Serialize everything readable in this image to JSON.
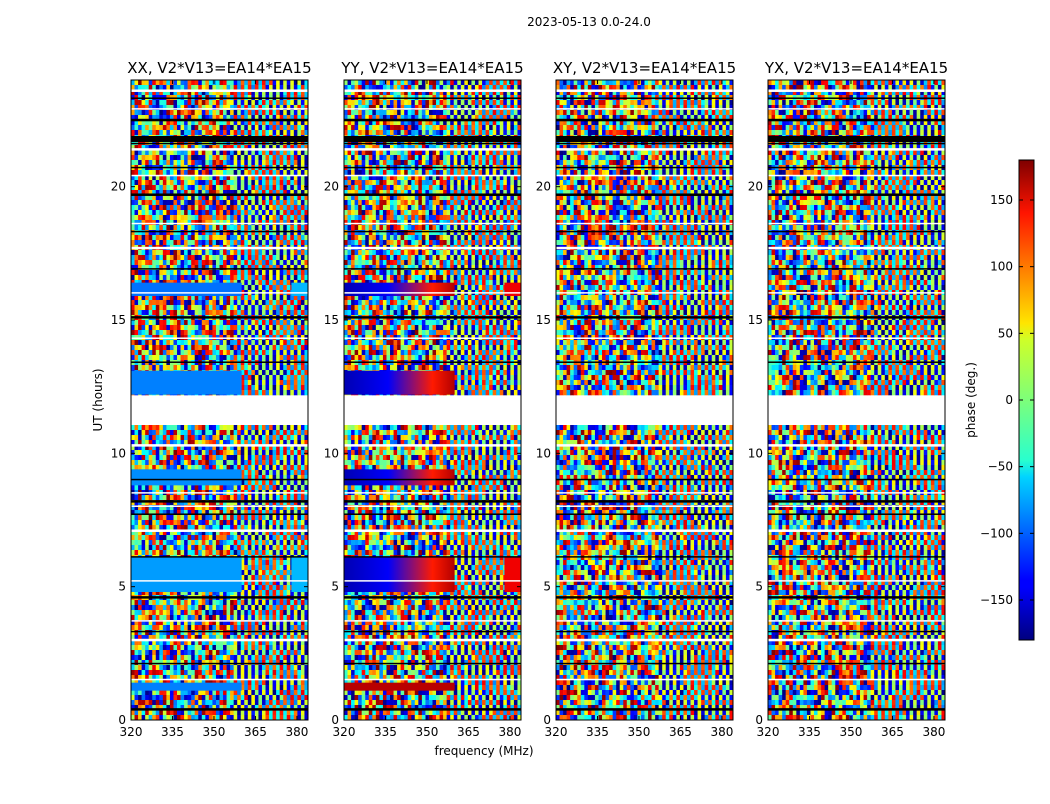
{
  "suptitle": "2023-05-13 0.0-24.0",
  "xlabel": "frequency (MHz)",
  "ylabel": "UT (hours)",
  "colorbar": {
    "label": "phase (deg.)",
    "ticks": [
      -150,
      -100,
      -50,
      0,
      50,
      100,
      150
    ],
    "range": [
      -180,
      180
    ],
    "colormap": "jet"
  },
  "chart_data": [
    {
      "type": "heatmap",
      "title": "XX, V2*V13=EA14*EA15",
      "xlabel": "frequency (MHz)",
      "ylabel": "UT (hours)",
      "xlim": [
        320,
        384
      ],
      "ylim": [
        0,
        24
      ],
      "xticks": [
        320,
        335,
        350,
        365,
        380
      ],
      "yticks": [
        0,
        5,
        10,
        15,
        20
      ],
      "value": "phase (deg.)",
      "coherent_regions": [
        {
          "t": [
            1.1,
            1.4
          ],
          "f": [
            320,
            360
          ],
          "phase": -90
        },
        {
          "t": [
            4.8,
            6.1
          ],
          "f": [
            320,
            360
          ],
          "phase": -80
        },
        {
          "t": [
            8.8,
            9.4
          ],
          "f": [
            320,
            360
          ],
          "phase": -85
        },
        {
          "t": [
            12.2,
            13.1
          ],
          "f": [
            320,
            360
          ],
          "phase": -90
        },
        {
          "t": [
            15.9,
            16.4
          ],
          "f": [
            320,
            360
          ],
          "phase": -95
        },
        {
          "t": [
            4.8,
            6.1
          ],
          "f": [
            378,
            384
          ],
          "phase": -70
        },
        {
          "t": [
            15.9,
            16.4
          ],
          "f": [
            378,
            384
          ],
          "phase": -70
        }
      ]
    },
    {
      "type": "heatmap",
      "title": "YY, V2*V13=EA14*EA15",
      "xlabel": "frequency (MHz)",
      "ylabel": "UT (hours)",
      "xlim": [
        320,
        384
      ],
      "ylim": [
        0,
        24
      ],
      "xticks": [
        320,
        335,
        350,
        365,
        380
      ],
      "yticks": [
        0,
        5,
        10,
        15,
        20
      ],
      "value": "phase (deg.)",
      "coherent_regions": [
        {
          "t": [
            1.1,
            1.4
          ],
          "f": [
            320,
            360
          ],
          "phase": 160
        },
        {
          "t": [
            4.8,
            6.1
          ],
          "f": [
            320,
            360
          ],
          "phase": "-160 to 160"
        },
        {
          "t": [
            8.8,
            9.4
          ],
          "f": [
            320,
            360
          ],
          "phase": "-160 to 160"
        },
        {
          "t": [
            12.2,
            13.1
          ],
          "f": [
            320,
            360
          ],
          "phase": "-160 to 160"
        },
        {
          "t": [
            15.9,
            16.4
          ],
          "f": [
            320,
            360
          ],
          "phase": "-160 to 160"
        },
        {
          "t": [
            4.8,
            6.1
          ],
          "f": [
            378,
            384
          ],
          "phase": 140
        },
        {
          "t": [
            15.9,
            16.4
          ],
          "f": [
            378,
            384
          ],
          "phase": 140
        }
      ]
    },
    {
      "type": "heatmap",
      "title": "XY, V2*V13=EA14*EA15",
      "xlabel": "frequency (MHz)",
      "ylabel": "UT (hours)",
      "xlim": [
        320,
        384
      ],
      "ylim": [
        0,
        24
      ],
      "xticks": [
        320,
        335,
        350,
        365,
        380
      ],
      "yticks": [
        0,
        5,
        10,
        15,
        20
      ],
      "value": "phase (deg.)",
      "coherent_regions": []
    },
    {
      "type": "heatmap",
      "title": "YX, V2*V13=EA14*EA15",
      "xlabel": "frequency (MHz)",
      "ylabel": "UT (hours)",
      "xlim": [
        320,
        384
      ],
      "ylim": [
        0,
        24
      ],
      "xticks": [
        320,
        335,
        350,
        365,
        380
      ],
      "yticks": [
        0,
        5,
        10,
        15,
        20
      ],
      "value": "phase (deg.)",
      "coherent_regions": []
    }
  ],
  "gaps_hours": [
    [
      11.0,
      12.2
    ]
  ],
  "flag_lines_hours": [
    0.4,
    1.5,
    2.1,
    3.0,
    3.3,
    3.7,
    4.6,
    5.2,
    6.1,
    7.1,
    7.7,
    8.0,
    8.2,
    8.5,
    9.0,
    10.3,
    13.4,
    14.3,
    15.1,
    16.0,
    16.9,
    17.7,
    18.3,
    18.6,
    19.7,
    20.4,
    20.7,
    21.4,
    21.6,
    21.8,
    22.5,
    22.9,
    23.3,
    23.6
  ]
}
